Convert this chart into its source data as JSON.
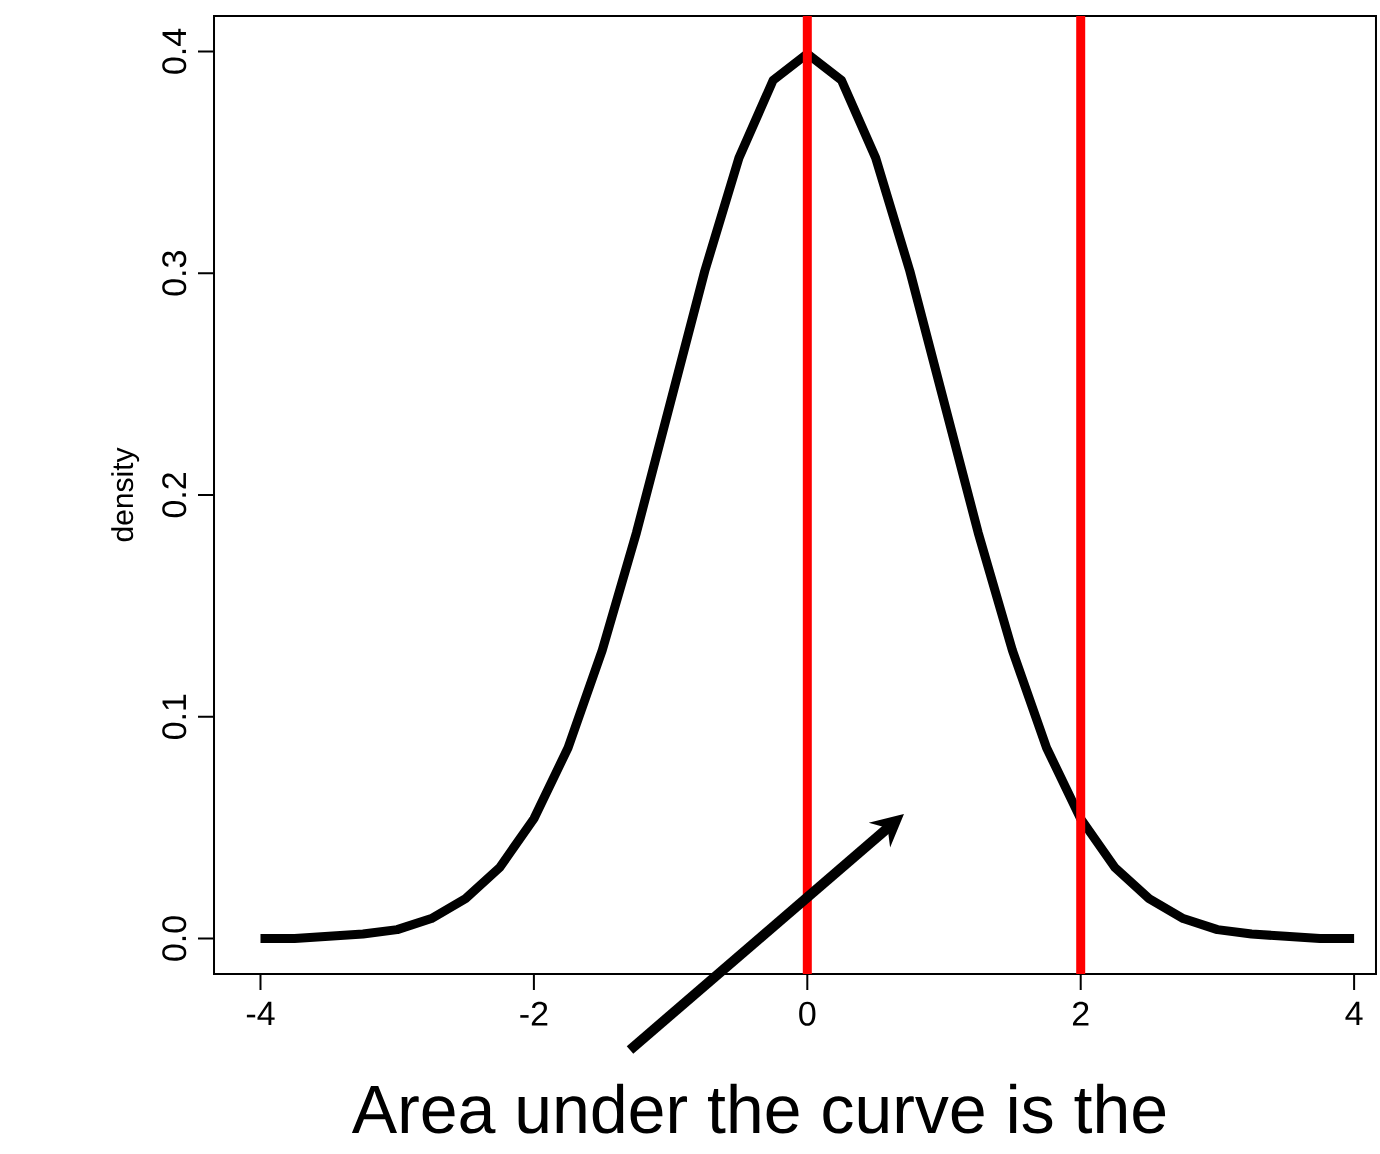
{
  "chart_data": {
    "type": "line",
    "ylabel": "density",
    "series": [
      {
        "color": "#000000",
        "x": [
          -4,
          -3.75,
          -3.5,
          -3.25,
          -3,
          -2.75,
          -2.5,
          -2.25,
          -2,
          -1.75,
          -1.5,
          -1.25,
          -1,
          -0.75,
          -0.5,
          -0.25,
          0,
          0.25,
          0.5,
          0.75,
          1,
          1.25,
          1.5,
          1.75,
          2,
          2.25,
          2.5,
          2.75,
          3,
          3.25,
          3.5,
          3.75,
          4
        ],
        "values": [
          0.0,
          0.0,
          0.001,
          0.002,
          0.004,
          0.009,
          0.018,
          0.032,
          0.054,
          0.086,
          0.13,
          0.183,
          0.242,
          0.301,
          0.352,
          0.387,
          0.399,
          0.387,
          0.352,
          0.301,
          0.242,
          0.183,
          0.13,
          0.086,
          0.054,
          0.032,
          0.018,
          0.009,
          0.004,
          0.002,
          0.001,
          0.0,
          0.0
        ]
      }
    ],
    "xlim": [
      -4.34,
      4.16
    ],
    "ylim": [
      -0.016,
      0.416
    ],
    "xticks": [
      -4,
      -2,
      0,
      2,
      4
    ],
    "yticks": [
      {
        "value": 0,
        "label": "0.0"
      },
      {
        "value": 0.1,
        "label": "0.1"
      },
      {
        "value": 0.2,
        "label": "0.2"
      },
      {
        "value": 0.3,
        "label": "0.3"
      },
      {
        "value": 0.4,
        "label": "0.4"
      }
    ],
    "ref_lines": [
      {
        "axis": "x",
        "value": 0,
        "color": "#ff0000"
      },
      {
        "axis": "x",
        "value": 2,
        "color": "#ff0000"
      }
    ],
    "annotations": [
      "Area under the curve is the"
    ],
    "marker": "none",
    "line_style": "solid"
  }
}
